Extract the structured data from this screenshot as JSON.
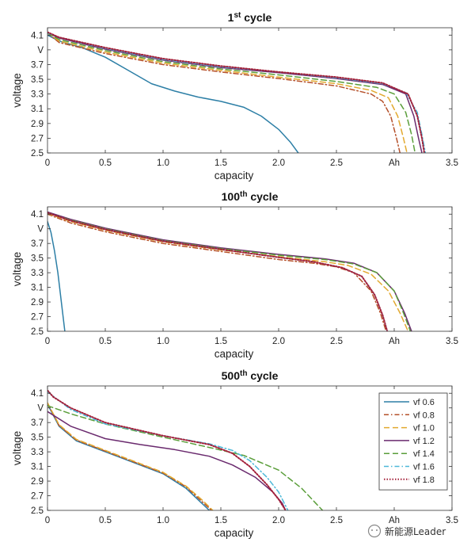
{
  "chart_data": [
    {
      "type": "line",
      "title_main": "1",
      "title_sup": "st",
      "title_rest": " cycle",
      "xlabel": "capacity",
      "ylabel": "voltage",
      "xlim": [
        0,
        3.5
      ],
      "ylim": [
        2.5,
        4.2
      ],
      "x_tick_labels": [
        "0",
        "0.5",
        "1.0",
        "1.5",
        "2.0",
        "2.5",
        "Ah",
        "3.5"
      ],
      "y_tick_labels": [
        "4.1",
        "V",
        "3.7",
        "3.5",
        "3.3",
        "3.1",
        "2.9",
        "2.7",
        "2.5"
      ],
      "grid": false,
      "series": [
        {
          "name": "vf 0.6",
          "x": [
            0,
            0.1,
            0.3,
            0.5,
            0.7,
            0.9,
            1.1,
            1.3,
            1.5,
            1.7,
            1.85,
            2.0,
            2.1,
            2.17
          ],
          "y": [
            4.1,
            4.02,
            3.93,
            3.8,
            3.62,
            3.44,
            3.34,
            3.26,
            3.2,
            3.12,
            3.0,
            2.82,
            2.65,
            2.5
          ]
        },
        {
          "name": "vf 0.8",
          "x": [
            0,
            0.1,
            0.5,
            1.0,
            1.5,
            2.0,
            2.5,
            2.8,
            2.9,
            2.97,
            3.02,
            3.05
          ],
          "y": [
            4.13,
            4.0,
            3.85,
            3.7,
            3.6,
            3.51,
            3.41,
            3.3,
            3.2,
            3.0,
            2.7,
            2.5
          ]
        },
        {
          "name": "vf 1.0",
          "x": [
            0,
            0.1,
            0.5,
            1.0,
            1.5,
            2.0,
            2.5,
            2.8,
            2.95,
            3.03,
            3.08,
            3.11
          ],
          "y": [
            4.13,
            4.02,
            3.87,
            3.72,
            3.62,
            3.53,
            3.44,
            3.35,
            3.25,
            3.0,
            2.7,
            2.5
          ]
        },
        {
          "name": "vf 1.2",
          "x": [
            0,
            0.1,
            0.5,
            1.0,
            1.5,
            2.0,
            2.5,
            2.9,
            3.1,
            3.17,
            3.21,
            3.24
          ],
          "y": [
            4.13,
            4.06,
            3.91,
            3.76,
            3.66,
            3.59,
            3.51,
            3.43,
            3.3,
            3.0,
            2.7,
            2.5
          ]
        },
        {
          "name": "vf 1.4",
          "x": [
            0,
            0.1,
            0.5,
            1.0,
            1.5,
            2.0,
            2.5,
            2.85,
            3.0,
            3.1,
            3.15,
            3.18
          ],
          "y": [
            4.13,
            4.04,
            3.89,
            3.74,
            3.64,
            3.56,
            3.47,
            3.39,
            3.3,
            3.05,
            2.75,
            2.5
          ]
        },
        {
          "name": "vf 1.6",
          "x": [
            0,
            0.1,
            0.5,
            1.0,
            1.5,
            2.0,
            2.5,
            2.9,
            3.1,
            3.2,
            3.24,
            3.27
          ],
          "y": [
            4.13,
            4.07,
            3.92,
            3.77,
            3.67,
            3.6,
            3.52,
            3.44,
            3.32,
            3.05,
            2.75,
            2.5
          ]
        },
        {
          "name": "vf 1.8",
          "x": [
            0,
            0.1,
            0.5,
            1.0,
            1.5,
            2.0,
            2.5,
            2.9,
            3.12,
            3.2,
            3.24,
            3.26
          ],
          "y": [
            4.14,
            4.07,
            3.93,
            3.78,
            3.68,
            3.6,
            3.53,
            3.45,
            3.3,
            3.0,
            2.7,
            2.5
          ]
        }
      ]
    },
    {
      "type": "line",
      "title_main": "100",
      "title_sup": "th",
      "title_rest": " cycle",
      "xlabel": "capacity",
      "ylabel": "voltage",
      "xlim": [
        0,
        3.5
      ],
      "ylim": [
        2.5,
        4.2
      ],
      "x_tick_labels": [
        "0",
        "0.5",
        "1.0",
        "1.5",
        "2.0",
        "2.5",
        "Ah",
        "3.5"
      ],
      "y_tick_labels": [
        "4.1",
        "V",
        "3.7",
        "3.5",
        "3.3",
        "3.1",
        "2.9",
        "2.7",
        "2.5"
      ],
      "grid": false,
      "series": [
        {
          "name": "vf 0.6",
          "x": [
            0,
            0.03,
            0.06,
            0.09,
            0.12,
            0.15
          ],
          "y": [
            4.0,
            3.85,
            3.6,
            3.3,
            2.9,
            2.5
          ]
        },
        {
          "name": "vf 0.8",
          "x": [
            0,
            0.2,
            0.5,
            1.0,
            1.5,
            2.0,
            2.3,
            2.5,
            2.65,
            2.8,
            2.88,
            2.93
          ],
          "y": [
            4.1,
            3.98,
            3.86,
            3.7,
            3.59,
            3.48,
            3.43,
            3.38,
            3.3,
            3.05,
            2.75,
            2.5
          ]
        },
        {
          "name": "vf 1.0",
          "x": [
            0,
            0.2,
            0.5,
            1.0,
            1.5,
            2.0,
            2.4,
            2.6,
            2.8,
            2.95,
            3.05,
            3.12
          ],
          "y": [
            4.11,
            4.0,
            3.88,
            3.72,
            3.61,
            3.52,
            3.45,
            3.4,
            3.28,
            3.05,
            2.75,
            2.5
          ]
        },
        {
          "name": "vf 1.2",
          "x": [
            0,
            0.2,
            0.5,
            1.0,
            1.5,
            2.0,
            2.4,
            2.65,
            2.85,
            3.0,
            3.09,
            3.15
          ],
          "y": [
            4.13,
            4.03,
            3.91,
            3.75,
            3.64,
            3.55,
            3.49,
            3.43,
            3.3,
            3.05,
            2.75,
            2.5
          ]
        },
        {
          "name": "vf 1.4",
          "x": [
            0,
            0.2,
            0.5,
            1.0,
            1.5,
            2.0,
            2.4,
            2.65,
            2.85,
            3.0,
            3.08,
            3.14
          ],
          "y": [
            4.12,
            4.02,
            3.9,
            3.74,
            3.63,
            3.54,
            3.48,
            3.42,
            3.3,
            3.05,
            2.75,
            2.5
          ]
        },
        {
          "name": "vf 1.6",
          "x": [
            0,
            0.2,
            0.5,
            1.0,
            1.5,
            2.0,
            2.3,
            2.55,
            2.72,
            2.83,
            2.9,
            2.94
          ],
          "y": [
            4.12,
            4.01,
            3.89,
            3.73,
            3.62,
            3.51,
            3.45,
            3.37,
            3.25,
            3.0,
            2.72,
            2.5
          ]
        },
        {
          "name": "vf 1.8",
          "x": [
            0,
            0.2,
            0.5,
            1.0,
            1.5,
            2.0,
            2.3,
            2.55,
            2.72,
            2.83,
            2.9,
            2.94
          ],
          "y": [
            4.12,
            4.01,
            3.89,
            3.73,
            3.62,
            3.51,
            3.45,
            3.37,
            3.25,
            3.0,
            2.72,
            2.5
          ]
        }
      ]
    },
    {
      "type": "line",
      "title_main": "500",
      "title_sup": "th",
      "title_rest": " cycle",
      "xlabel": "capacity",
      "ylabel": "voltage",
      "xlim": [
        0,
        3.5
      ],
      "ylim": [
        2.5,
        4.2
      ],
      "x_tick_labels": [
        "0",
        "0.5",
        "1.0",
        "1.5",
        "2.0",
        "2.5",
        "Ah",
        "3.5"
      ],
      "y_tick_labels": [
        "4.1",
        "V",
        "3.7",
        "3.5",
        "3.3",
        "3.1",
        "2.9",
        "2.7",
        "2.5"
      ],
      "grid": false,
      "legend": "top-right",
      "series": [
        {
          "name": "vf 0.6",
          "x": [
            0,
            0.1,
            0.25,
            0.5,
            0.8,
            1.0,
            1.2,
            1.32,
            1.4
          ],
          "y": [
            3.95,
            3.65,
            3.45,
            3.3,
            3.12,
            3.0,
            2.8,
            2.62,
            2.5
          ]
        },
        {
          "name": "vf 0.8",
          "x": [
            0,
            0.1,
            0.25,
            0.5,
            0.8,
            1.0,
            1.2,
            1.33,
            1.42
          ],
          "y": [
            3.96,
            3.66,
            3.46,
            3.31,
            3.13,
            3.01,
            2.82,
            2.63,
            2.5
          ]
        },
        {
          "name": "vf 1.0",
          "x": [
            0,
            0.1,
            0.25,
            0.5,
            0.8,
            1.0,
            1.2,
            1.34,
            1.43
          ],
          "y": [
            3.97,
            3.67,
            3.47,
            3.32,
            3.14,
            3.02,
            2.83,
            2.64,
            2.5
          ]
        },
        {
          "name": "vf 1.2",
          "x": [
            0,
            0.2,
            0.5,
            0.8,
            1.1,
            1.4,
            1.6,
            1.8,
            1.95,
            2.03,
            2.06
          ],
          "y": [
            3.85,
            3.65,
            3.48,
            3.4,
            3.33,
            3.24,
            3.12,
            2.95,
            2.75,
            2.6,
            2.5
          ]
        },
        {
          "name": "vf 1.4",
          "x": [
            0,
            0.2,
            0.5,
            1.0,
            1.4,
            1.7,
            2.0,
            2.2,
            2.32,
            2.38
          ],
          "y": [
            3.93,
            3.82,
            3.68,
            3.5,
            3.36,
            3.25,
            3.05,
            2.8,
            2.6,
            2.5
          ]
        },
        {
          "name": "vf 1.6",
          "x": [
            0,
            0.2,
            0.5,
            1.0,
            1.4,
            1.6,
            1.75,
            1.9,
            2.0,
            2.08
          ],
          "y": [
            4.12,
            3.88,
            3.68,
            3.52,
            3.41,
            3.32,
            3.18,
            2.95,
            2.75,
            2.5
          ]
        },
        {
          "name": "vf 1.8",
          "x": [
            0,
            0.05,
            0.2,
            0.5,
            1.0,
            1.4,
            1.6,
            1.75,
            1.9,
            2.0,
            2.06
          ],
          "y": [
            4.14,
            4.05,
            3.9,
            3.7,
            3.52,
            3.4,
            3.28,
            3.1,
            2.85,
            2.65,
            2.5
          ]
        }
      ]
    }
  ],
  "series_style": [
    {
      "color": "#2d7fa6",
      "dash": ""
    },
    {
      "color": "#b5502a",
      "dash": "6 3 1.5 3"
    },
    {
      "color": "#e2a92f",
      "dash": "7 4"
    },
    {
      "color": "#6a2a6e",
      "dash": ""
    },
    {
      "color": "#5a9e3a",
      "dash": "7 4"
    },
    {
      "color": "#4bb8d8",
      "dash": "6 3 1.5 3"
    },
    {
      "color": "#a3203a",
      "dash": "1.5 2"
    }
  ],
  "watermark": "新能源Leader"
}
